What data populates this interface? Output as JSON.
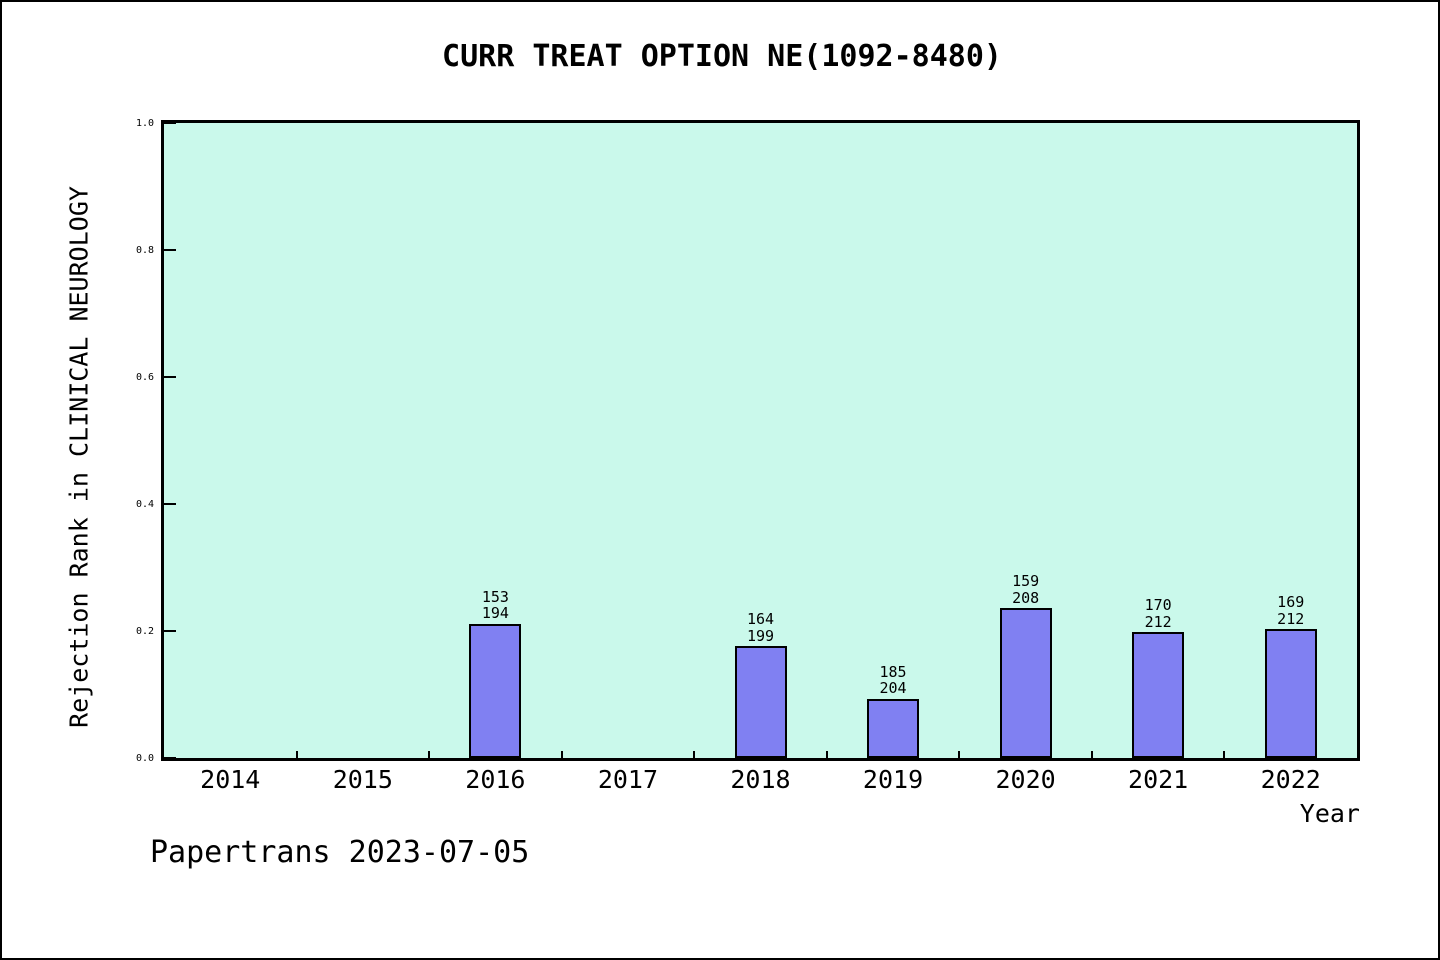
{
  "page": {
    "footer": "Papertrans 2023-07-05"
  },
  "chart_data": {
    "type": "bar",
    "title": "CURR TREAT OPTION NE(1092-8480)",
    "xlabel": "Year",
    "ylabel": "Rejection Rank in CLINICAL NEUROLOGY",
    "categories": [
      "2014",
      "2015",
      "2016",
      "2017",
      "2018",
      "2019",
      "2020",
      "2021",
      "2022"
    ],
    "ylim": [
      0.0,
      1.0
    ],
    "yticks": [
      "0.0",
      "0.2",
      "0.4",
      "0.6",
      "0.8",
      "1.0"
    ],
    "grid": false,
    "legend": "none",
    "bars": [
      {
        "category": "2016",
        "rank": "153",
        "total": "194",
        "value": 0.2113
      },
      {
        "category": "2018",
        "rank": "164",
        "total": "199",
        "value": 0.1759
      },
      {
        "category": "2019",
        "rank": "185",
        "total": "204",
        "value": 0.0931
      },
      {
        "category": "2020",
        "rank": "159",
        "total": "208",
        "value": 0.2356
      },
      {
        "category": "2021",
        "rank": "170",
        "total": "212",
        "value": 0.1981
      },
      {
        "category": "2022",
        "rank": "169",
        "total": "212",
        "value": 0.2028
      }
    ],
    "colors": {
      "plot_bg": "#caf9eb",
      "bar_fill": "#8080f2",
      "bar_edge": "#000000",
      "text": "#000000"
    }
  }
}
